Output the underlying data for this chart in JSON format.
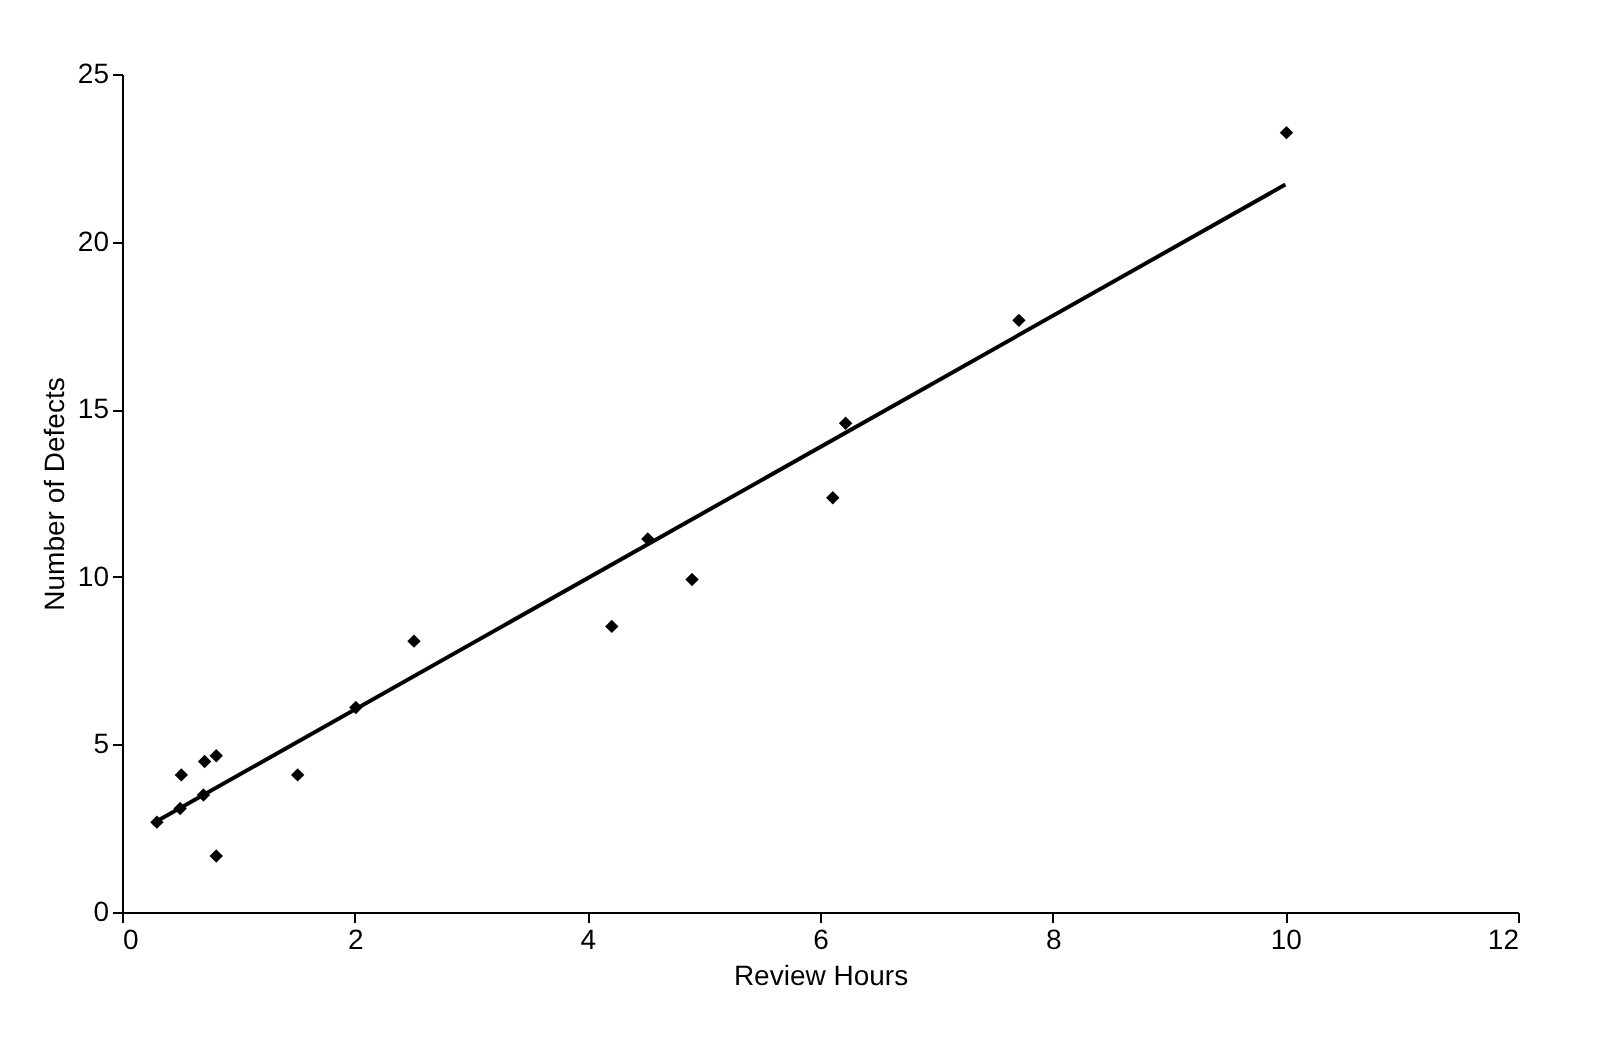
{
  "chart_data": {
    "type": "scatter",
    "xlabel": "Review Hours",
    "ylabel": "Number of Defects",
    "xlim": [
      0,
      12
    ],
    "xticks": [
      0,
      2,
      4,
      6,
      8,
      10,
      12
    ],
    "ylim": [
      0,
      25
    ],
    "yticks": [
      0,
      5,
      10,
      15,
      20,
      25
    ],
    "grid": false,
    "legend": false,
    "series": [
      {
        "type": "scatter",
        "marker": "diamond",
        "color": "#000000",
        "x": [
          0.3,
          0.5,
          0.51,
          0.7,
          0.71,
          0.81,
          0.81,
          1.51,
          2.01,
          2.51,
          4.21,
          4.52,
          4.9,
          6.11,
          6.22,
          7.71,
          10.01
        ],
        "values": [
          2.68,
          3.09,
          4.09,
          3.49,
          4.49,
          4.66,
          1.67,
          4.09,
          6.1,
          8.08,
          8.52,
          11.13,
          9.92,
          12.36,
          14.58,
          17.65,
          23.25
        ]
      },
      {
        "type": "line",
        "color": "#000000",
        "line_style": "solid",
        "x": [
          0.26,
          10.0
        ],
        "values": [
          2.63,
          21.7
        ]
      }
    ]
  }
}
